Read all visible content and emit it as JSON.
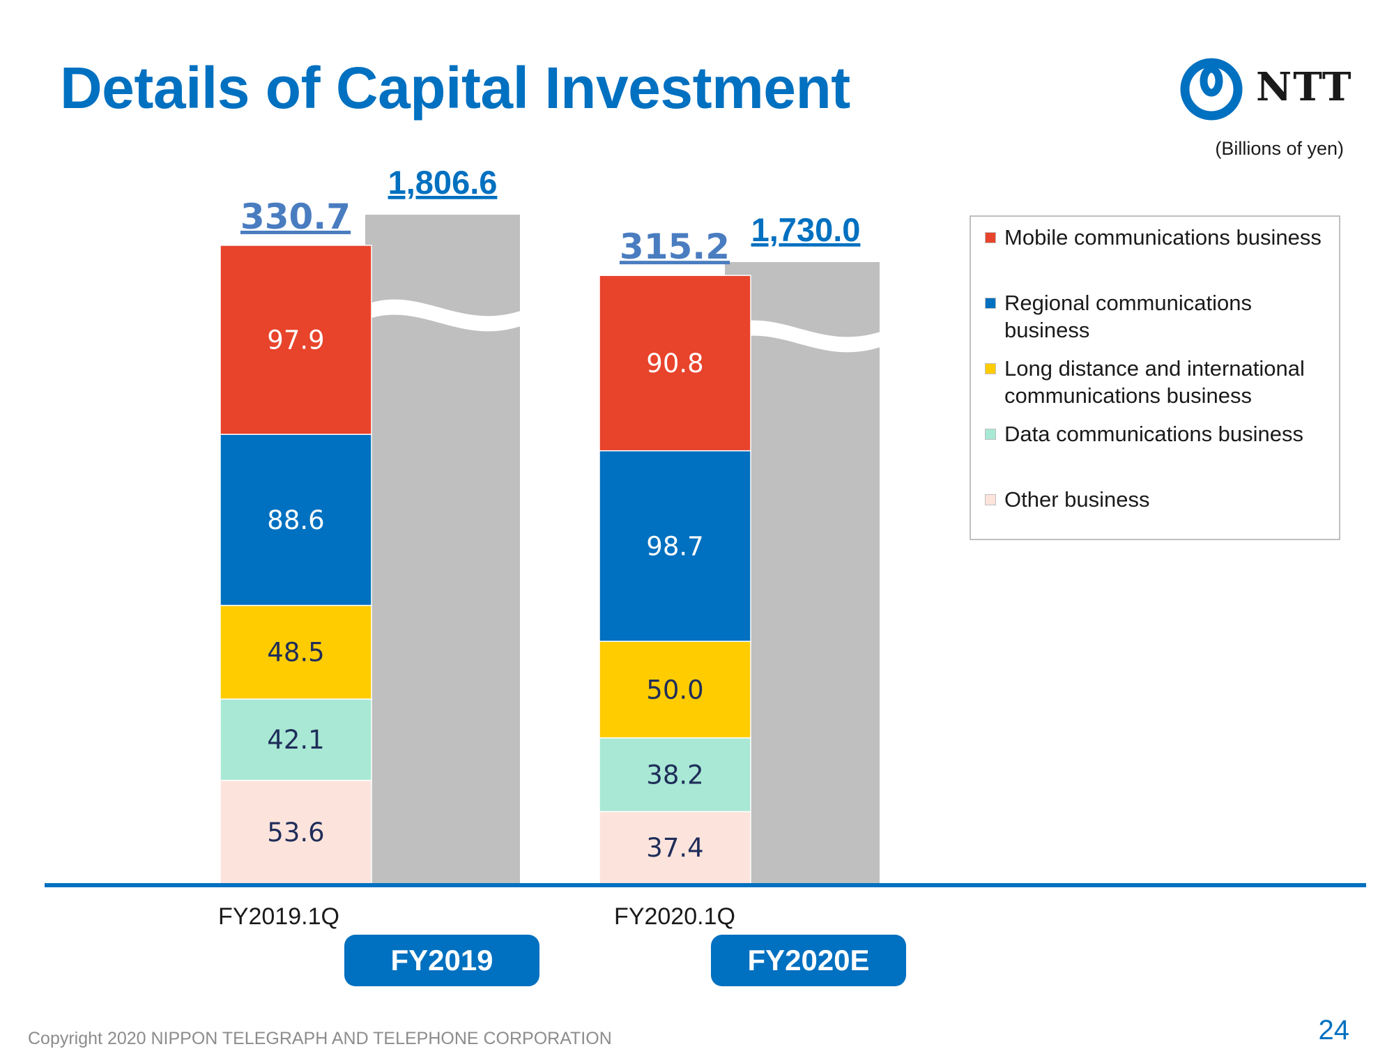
{
  "page": {
    "title": "Details of Capital Investment",
    "unit_note": "(Billions of yen)",
    "logo_text": "NTT",
    "footer": "Copyright 2020 NIPPON TELEGRAPH AND TELEPHONE CORPORATION",
    "page_number": "24"
  },
  "chart_data": {
    "type": "bar",
    "stacked": true,
    "categories": [
      "FY2019.1Q",
      "FY2020.1Q"
    ],
    "series": [
      {
        "name": "Other business",
        "color": "#fce4dc",
        "label_color": "#1f2d5a",
        "values": [
          53.6,
          37.4
        ]
      },
      {
        "name": "Data communications business",
        "color": "#a8e8d4",
        "label_color": "#1f2d5a",
        "values": [
          42.1,
          38.2
        ]
      },
      {
        "name": "Long distance and international communications business",
        "color": "#ffcc00",
        "label_color": "#1f2d5a",
        "values": [
          48.5,
          50.0
        ]
      },
      {
        "name": "Regional communications business",
        "color": "#0070c0",
        "label_color": "#ffffff",
        "values": [
          88.6,
          98.7
        ]
      },
      {
        "name": "Mobile communications business",
        "color": "#e8432b",
        "label_color": "#ffffff",
        "values": [
          97.9,
          90.8
        ]
      }
    ],
    "totals": [
      "330.7",
      "315.2"
    ],
    "full_year": {
      "labels": [
        "FY2019",
        "FY2020E"
      ],
      "totals": [
        "1,806.6",
        "1,730.0"
      ],
      "values": [
        1806.6,
        1730.0
      ],
      "color": "#bfbfbf",
      "broken_axis": true
    },
    "legend_position": "right",
    "grid": false
  }
}
